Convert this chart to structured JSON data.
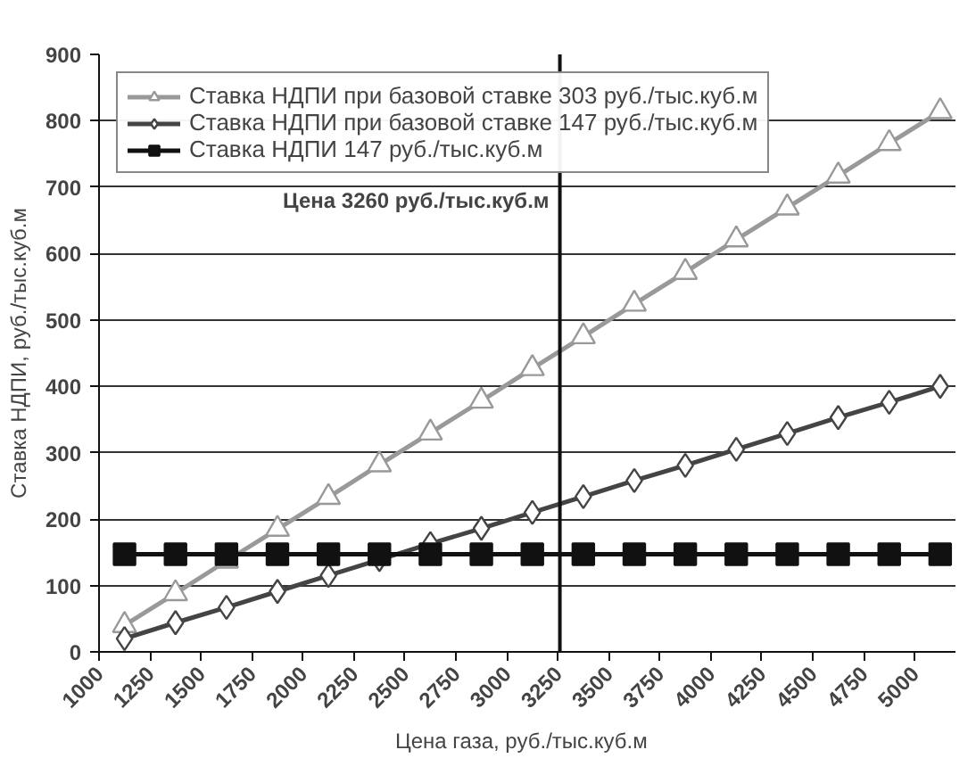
{
  "chart_data": {
    "type": "line",
    "xlabel": "Цена  газа,  руб./тыс.куб.м",
    "ylabel": "Ставка НДПИ, руб./тыс.куб.м",
    "x": [
      1125,
      1375,
      1625,
      1875,
      2125,
      2375,
      2625,
      2875,
      3125,
      3375,
      3625,
      3875,
      4125,
      4375,
      4625,
      4875,
      5125
    ],
    "series": [
      {
        "name": "Ставка НДПИ при базовой ставке 303 руб./тыс.куб.м",
        "color": "#999999",
        "marker": "triangle",
        "values": [
          40,
          88,
          137,
          185,
          233,
          282,
          330,
          378,
          427,
          475,
          524,
          572,
          621,
          669,
          717,
          766,
          814
        ]
      },
      {
        "name": "Ставка НДПИ при базовой ставке 147 руб./тыс.куб.м",
        "color": "#444444",
        "marker": "diamond",
        "values": [
          20,
          44,
          67,
          91,
          115,
          139,
          163,
          186,
          210,
          234,
          258,
          281,
          305,
          329,
          353,
          376,
          400
        ]
      },
      {
        "name": "Ставка НДПИ 147 руб./тыс.куб.м",
        "color": "#111111",
        "marker": "square",
        "values": [
          147,
          147,
          147,
          147,
          147,
          147,
          147,
          147,
          147,
          147,
          147,
          147,
          147,
          147,
          147,
          147,
          147
        ]
      }
    ],
    "xlim": [
      1000,
      5200
    ],
    "xticks": [
      1000,
      1250,
      1500,
      1750,
      2000,
      2250,
      2500,
      2750,
      3000,
      3250,
      3500,
      3750,
      4000,
      4250,
      4500,
      4750,
      5000
    ],
    "ylim": [
      0,
      900
    ],
    "yticks": [
      0,
      100,
      200,
      300,
      400,
      500,
      600,
      700,
      800,
      900
    ],
    "ref_lines": [
      {
        "axis": "x",
        "value": 3260,
        "label": "Цена 3260 руб./тыс.куб.м",
        "color": "#111111"
      }
    ],
    "grid": "y",
    "legend": "top left"
  }
}
